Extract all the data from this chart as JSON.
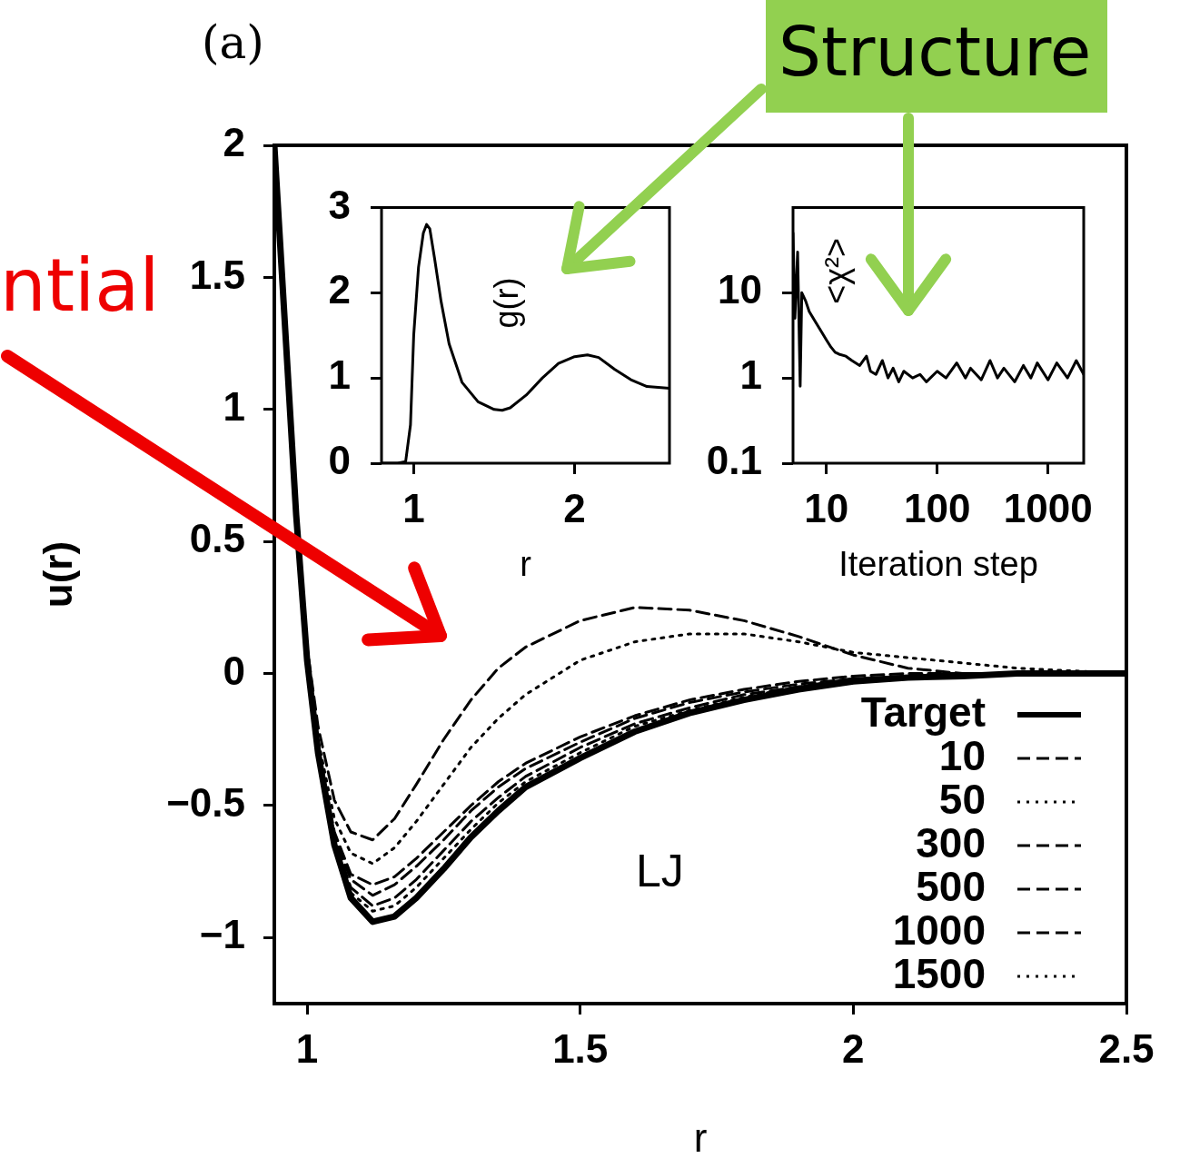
{
  "chart_data": [
    {
      "type": "line",
      "xlabel": "r",
      "ylabel": "u(r)",
      "annotations": [
        "(a)",
        "LJ",
        "ntial",
        "Structure"
      ],
      "x": [
        0.94,
        0.96,
        0.98,
        1.0,
        1.02,
        1.05,
        1.08,
        1.12,
        1.16,
        1.2,
        1.25,
        1.3,
        1.35,
        1.4,
        1.5,
        1.6,
        1.7,
        1.8,
        1.9,
        2.0,
        2.1,
        2.2,
        2.3,
        2.4,
        2.5
      ],
      "xlim": [
        0.94,
        2.5
      ],
      "xticks": [
        1,
        1.5,
        2,
        2.5
      ],
      "ylim": [
        -1.25,
        2
      ],
      "yticks": [
        {
          "value": -1,
          "label": "−1"
        },
        {
          "value": -0.5,
          "label": "−0.5"
        },
        0,
        0.5,
        1,
        1.5,
        2
      ],
      "legend": "bottom right",
      "marker": "none",
      "series": [
        {
          "name": "Target",
          "color": "#000000",
          "line_style": "solid",
          "values": [
            2.0,
            1.3,
            0.6,
            0.05,
            -0.3,
            -0.65,
            -0.85,
            -0.94,
            -0.92,
            -0.85,
            -0.74,
            -0.62,
            -0.52,
            -0.43,
            -0.32,
            -0.22,
            -0.15,
            -0.1,
            -0.06,
            -0.03,
            -0.015,
            -0.01,
            0,
            0,
            0
          ]
        },
        {
          "name": "10",
          "color": "#000000",
          "line_style": "dashed",
          "values": [
            2.0,
            1.3,
            0.6,
            0.1,
            -0.2,
            -0.48,
            -0.6,
            -0.63,
            -0.55,
            -0.42,
            -0.25,
            -0.1,
            0.02,
            0.1,
            0.2,
            0.25,
            0.24,
            0.2,
            0.14,
            0.07,
            0.02,
            0,
            0,
            0,
            0
          ]
        },
        {
          "name": "50",
          "color": "#000000",
          "line_style": "dotted",
          "values": [
            2.0,
            1.3,
            0.6,
            0.08,
            -0.25,
            -0.55,
            -0.68,
            -0.72,
            -0.66,
            -0.56,
            -0.42,
            -0.28,
            -0.17,
            -0.08,
            0.05,
            0.12,
            0.15,
            0.15,
            0.12,
            0.08,
            0.06,
            0.04,
            0.02,
            0.01,
            0
          ]
        },
        {
          "name": "300",
          "color": "#000000",
          "line_style": "dashed",
          "values": [
            2.0,
            1.3,
            0.6,
            0.06,
            -0.28,
            -0.6,
            -0.76,
            -0.8,
            -0.77,
            -0.7,
            -0.6,
            -0.5,
            -0.41,
            -0.34,
            -0.24,
            -0.16,
            -0.1,
            -0.06,
            -0.03,
            -0.01,
            0,
            0,
            0,
            0,
            0
          ]
        },
        {
          "name": "500",
          "color": "#000000",
          "line_style": "dashed",
          "values": [
            2.0,
            1.3,
            0.6,
            0.06,
            -0.29,
            -0.62,
            -0.78,
            -0.84,
            -0.8,
            -0.73,
            -0.63,
            -0.52,
            -0.43,
            -0.36,
            -0.26,
            -0.17,
            -0.11,
            -0.07,
            -0.04,
            -0.02,
            -0.01,
            0,
            0,
            0,
            0
          ]
        },
        {
          "name": "1000",
          "color": "#000000",
          "line_style": "dashed",
          "values": [
            2.0,
            1.3,
            0.6,
            0.05,
            -0.3,
            -0.63,
            -0.81,
            -0.88,
            -0.85,
            -0.78,
            -0.67,
            -0.56,
            -0.47,
            -0.39,
            -0.28,
            -0.19,
            -0.13,
            -0.08,
            -0.05,
            -0.02,
            -0.01,
            0,
            0,
            0,
            0
          ]
        },
        {
          "name": "1500",
          "color": "#000000",
          "line_style": "dotted",
          "values": [
            2.0,
            1.3,
            0.6,
            0.05,
            -0.3,
            -0.64,
            -0.83,
            -0.9,
            -0.88,
            -0.81,
            -0.7,
            -0.59,
            -0.49,
            -0.41,
            -0.3,
            -0.2,
            -0.14,
            -0.09,
            -0.05,
            -0.03,
            -0.01,
            0,
            0,
            0,
            0
          ]
        }
      ]
    },
    {
      "type": "line",
      "xlabel": "r",
      "ylabel": "g(r)",
      "marker": "none",
      "x": [
        0.8,
        0.9,
        0.95,
        0.98,
        1.0,
        1.03,
        1.06,
        1.08,
        1.1,
        1.13,
        1.17,
        1.22,
        1.3,
        1.4,
        1.5,
        1.55,
        1.6,
        1.7,
        1.8,
        1.9,
        2.0,
        2.08,
        2.15,
        2.25,
        2.35,
        2.45,
        2.59
      ],
      "xlim": [
        0.8,
        2.59
      ],
      "xticks": [
        1,
        2
      ],
      "ylim": [
        0,
        3
      ],
      "yticks": [
        0,
        1,
        2,
        3
      ],
      "series": [
        {
          "color": "#000000",
          "line_style": "solid",
          "values": [
            0,
            0,
            0.02,
            0.45,
            1.5,
            2.3,
            2.7,
            2.8,
            2.75,
            2.4,
            1.9,
            1.4,
            0.95,
            0.72,
            0.63,
            0.62,
            0.65,
            0.8,
            1.0,
            1.17,
            1.25,
            1.27,
            1.24,
            1.1,
            0.98,
            0.9,
            0.88
          ]
        }
      ]
    },
    {
      "type": "line",
      "xlabel": "Iteration step",
      "ylabel": "<χ²>",
      "marker": "none",
      "log": "xy",
      "x": [
        5,
        5.2,
        5.5,
        5.8,
        6,
        6.5,
        7,
        8,
        9,
        10,
        11,
        12,
        13,
        15,
        17,
        20,
        23,
        25,
        28,
        32,
        36,
        40,
        45,
        50,
        60,
        70,
        80,
        100,
        120,
        150,
        180,
        200,
        250,
        300,
        350,
        400,
        500,
        600,
        700,
        800,
        1000,
        1200,
        1500,
        1800,
        2100
      ],
      "xlim": [
        5,
        2100
      ],
      "xticks": [
        10,
        100,
        1000
      ],
      "ylim": [
        0.1,
        100
      ],
      "yticks": [
        0.1,
        1,
        10
      ],
      "series": [
        {
          "color": "#000000",
          "line_style": "solid",
          "values": [
            50,
            5,
            30,
            0.8,
            10,
            8,
            6,
            4.5,
            3.5,
            2.8,
            2.3,
            2,
            1.9,
            1.8,
            1.6,
            1.4,
            1.8,
            1.2,
            1.1,
            1.6,
            1.0,
            1.3,
            0.9,
            1.2,
            1.0,
            1.1,
            0.9,
            1.2,
            1.0,
            1.5,
            1.0,
            1.3,
            0.95,
            1.6,
            1.0,
            1.3,
            0.9,
            1.4,
            1.0,
            1.5,
            0.95,
            1.5,
            1.0,
            1.6,
            1.1
          ]
        }
      ]
    }
  ]
}
